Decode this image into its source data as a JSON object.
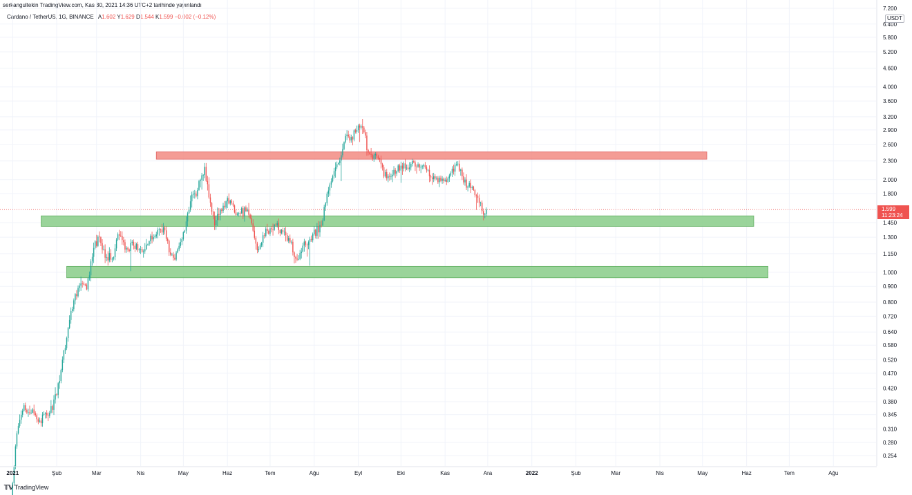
{
  "caption": "serkangultekin TradingView.com, Kas 30, 2021 14:36 UTC+2 tarihinde yayınlandı",
  "legend": {
    "symbol": "Cardano / TetherUS, 1G, BINANCE",
    "open_label": "A",
    "open": "1.602",
    "high_label": "Y",
    "high": "1.629",
    "low_label": "D",
    "low": "1.544",
    "close_label": "K",
    "close": "1.599",
    "change": "−0.002 (−0.12%)"
  },
  "currency_badge": "USDT",
  "last_price": {
    "value": "1.599",
    "countdown": "11:23:24"
  },
  "footer": {
    "logo_text": "TradingView"
  },
  "colors": {
    "up": "#26a69a",
    "down": "#ef5350",
    "resistance_zone": "#f28b82",
    "support_zone": "#88cc88"
  },
  "chart_data": {
    "type": "candlestick",
    "y_scale": "log",
    "ylim": [
      0.235,
      7.2
    ],
    "xlim": [
      "2020-12-27",
      "2022-08-31"
    ],
    "y_ticks": [
      "7.200",
      "6.400",
      "5.800",
      "5.200",
      "4.600",
      "4.000",
      "3.600",
      "3.200",
      "2.900",
      "2.600",
      "2.300",
      "2.000",
      "1.800",
      "1.450",
      "1.300",
      "1.150",
      "1.000",
      "0.900",
      "0.800",
      "0.720",
      "0.640",
      "0.580",
      "0.520",
      "0.470",
      "0.420",
      "0.380",
      "0.345",
      "0.310",
      "0.280",
      "0.254"
    ],
    "x_ticks": [
      {
        "label": "2021",
        "date": "2021-01-01"
      },
      {
        "label": "Şub",
        "date": "2021-02-01"
      },
      {
        "label": "Mar",
        "date": "2021-03-01"
      },
      {
        "label": "Nis",
        "date": "2021-04-01"
      },
      {
        "label": "May",
        "date": "2021-05-01"
      },
      {
        "label": "Haz",
        "date": "2021-06-01"
      },
      {
        "label": "Tem",
        "date": "2021-07-01"
      },
      {
        "label": "Ağu",
        "date": "2021-08-01"
      },
      {
        "label": "Eyl",
        "date": "2021-09-01"
      },
      {
        "label": "Eki",
        "date": "2021-10-01"
      },
      {
        "label": "Kas",
        "date": "2021-11-01"
      },
      {
        "label": "Ara",
        "date": "2021-12-01"
      },
      {
        "label": "2022",
        "date": "2022-01-01"
      },
      {
        "label": "Şub",
        "date": "2022-02-01"
      },
      {
        "label": "Mar",
        "date": "2022-03-01"
      },
      {
        "label": "Nis",
        "date": "2022-04-01"
      },
      {
        "label": "May",
        "date": "2022-05-01"
      },
      {
        "label": "Haz",
        "date": "2022-06-01"
      },
      {
        "label": "Tem",
        "date": "2022-07-01"
      },
      {
        "label": "Ağu",
        "date": "2022-08-01"
      }
    ],
    "anchor_closes": [
      [
        "2020-12-31",
        0.181
      ],
      [
        "2021-01-04",
        0.3
      ],
      [
        "2021-01-09",
        0.37
      ],
      [
        "2021-01-14",
        0.35
      ],
      [
        "2021-01-20",
        0.33
      ],
      [
        "2021-01-27",
        0.35
      ],
      [
        "2021-02-01",
        0.4
      ],
      [
        "2021-02-05",
        0.52
      ],
      [
        "2021-02-10",
        0.7
      ],
      [
        "2021-02-14",
        0.85
      ],
      [
        "2021-02-18",
        0.92
      ],
      [
        "2021-02-22",
        0.88
      ],
      [
        "2021-02-27",
        1.2
      ],
      [
        "2021-03-03",
        1.3
      ],
      [
        "2021-03-08",
        1.12
      ],
      [
        "2021-03-13",
        1.12
      ],
      [
        "2021-03-16",
        1.33
      ],
      [
        "2021-03-22",
        1.2
      ],
      [
        "2021-03-27",
        1.22
      ],
      [
        "2021-04-01",
        1.19
      ],
      [
        "2021-04-05",
        1.23
      ],
      [
        "2021-04-10",
        1.3
      ],
      [
        "2021-04-14",
        1.38
      ],
      [
        "2021-04-17",
        1.4
      ],
      [
        "2021-04-22",
        1.14
      ],
      [
        "2021-04-25",
        1.1
      ],
      [
        "2021-05-01",
        1.35
      ],
      [
        "2021-05-06",
        1.7
      ],
      [
        "2021-05-11",
        1.85
      ],
      [
        "2021-05-16",
        2.2
      ],
      [
        "2021-05-19",
        1.75
      ],
      [
        "2021-05-23",
        1.42
      ],
      [
        "2021-05-27",
        1.6
      ],
      [
        "2021-05-31",
        1.7
      ],
      [
        "2021-06-04",
        1.68
      ],
      [
        "2021-06-08",
        1.55
      ],
      [
        "2021-06-14",
        1.58
      ],
      [
        "2021-06-17",
        1.5
      ],
      [
        "2021-06-22",
        1.18
      ],
      [
        "2021-06-26",
        1.32
      ],
      [
        "2021-07-02",
        1.38
      ],
      [
        "2021-07-05",
        1.42
      ],
      [
        "2021-07-09",
        1.37
      ],
      [
        "2021-07-15",
        1.25
      ],
      [
        "2021-07-20",
        1.1
      ],
      [
        "2021-07-24",
        1.22
      ],
      [
        "2021-07-31",
        1.33
      ],
      [
        "2021-08-06",
        1.42
      ],
      [
        "2021-08-10",
        1.8
      ],
      [
        "2021-08-14",
        2.05
      ],
      [
        "2021-08-20",
        2.4
      ],
      [
        "2021-08-24",
        2.8
      ],
      [
        "2021-08-27",
        2.75
      ],
      [
        "2021-09-02",
        2.95
      ],
      [
        "2021-09-05",
        2.85
      ],
      [
        "2021-09-08",
        2.45
      ],
      [
        "2021-09-14",
        2.38
      ],
      [
        "2021-09-21",
        2.02
      ],
      [
        "2021-09-26",
        2.15
      ],
      [
        "2021-10-01",
        2.22
      ],
      [
        "2021-10-08",
        2.25
      ],
      [
        "2021-10-15",
        2.2
      ],
      [
        "2021-10-20",
        2.15
      ],
      [
        "2021-10-24",
        2.05
      ],
      [
        "2021-10-29",
        1.98
      ],
      [
        "2021-11-01",
        2.0
      ],
      [
        "2021-11-05",
        2.1
      ],
      [
        "2021-11-09",
        2.25
      ],
      [
        "2021-11-13",
        2.05
      ],
      [
        "2021-11-17",
        1.9
      ],
      [
        "2021-11-21",
        1.85
      ],
      [
        "2021-11-25",
        1.68
      ],
      [
        "2021-11-27",
        1.58
      ],
      [
        "2021-11-30",
        1.599
      ]
    ],
    "zones": [
      {
        "color": "#f28b82",
        "from": "2021-04-12",
        "to": "2022-05-04",
        "low": 2.33,
        "high": 2.46
      },
      {
        "color": "#88cc88",
        "from": "2021-01-21",
        "to": "2022-06-06",
        "low": 1.41,
        "high": 1.525
      },
      {
        "color": "#88cc88",
        "from": "2021-02-08",
        "to": "2022-06-16",
        "low": 0.96,
        "high": 1.045
      }
    ],
    "last_price": 1.599
  }
}
